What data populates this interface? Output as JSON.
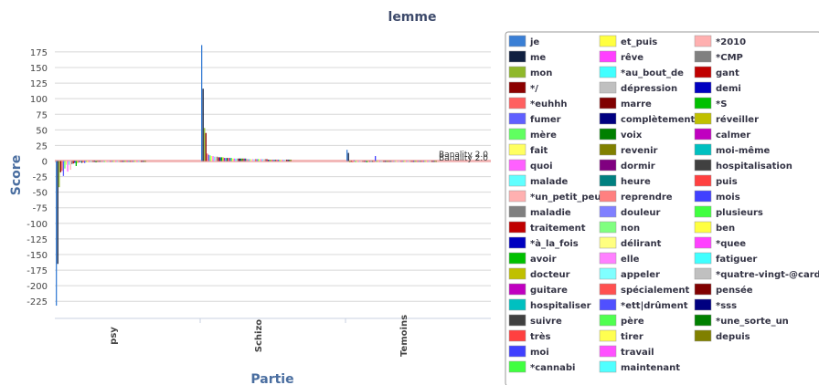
{
  "chart_data": {
    "type": "bar",
    "title": "lemme",
    "xlabel": "Partie",
    "ylabel": "Score",
    "ylim": [
      -235,
      190
    ],
    "yticks": [
      175,
      150,
      125,
      100,
      75,
      50,
      25,
      0,
      -25,
      -50,
      -75,
      -100,
      -125,
      -150,
      -175,
      -200,
      -225
    ],
    "grid": true,
    "legend_position": "right",
    "categories": [
      "psy",
      "Schizo",
      "Temoins"
    ],
    "annotations": [
      "Banality 2.0",
      "Banality 2.0"
    ],
    "series": [
      {
        "name": "je",
        "color": "#3a7fd5",
        "values": [
          -232,
          186,
          18
        ]
      },
      {
        "name": "me",
        "color": "#102040",
        "values": [
          -165,
          116,
          13
        ]
      },
      {
        "name": "mon",
        "color": "#8fb82a",
        "values": [
          -42,
          53,
          -2
        ]
      },
      {
        "name": "*/",
        "color": "#8b0000",
        "values": [
          -18,
          45,
          -1
        ]
      },
      {
        "name": "*euhhh",
        "color": "#ff6060",
        "values": [
          -16,
          12,
          -2
        ]
      },
      {
        "name": "fumer",
        "color": "#6060ff",
        "values": [
          -24,
          10,
          1
        ]
      },
      {
        "name": "mère",
        "color": "#60ff60",
        "values": [
          -12,
          9,
          -2
        ]
      },
      {
        "name": "fait",
        "color": "#ffff60",
        "values": [
          -6,
          8,
          -1
        ]
      },
      {
        "name": "quoi",
        "color": "#ff60ff",
        "values": [
          -17,
          8,
          -1
        ]
      },
      {
        "name": "malade",
        "color": "#60ffff",
        "values": [
          -6,
          7,
          -1
        ]
      },
      {
        "name": "*un_petit_peu",
        "color": "#ffb0b0",
        "values": [
          -14,
          7,
          0
        ]
      },
      {
        "name": "maladie",
        "color": "#808080",
        "values": [
          -5,
          7,
          -1
        ]
      },
      {
        "name": "traitement",
        "color": "#c00000",
        "values": [
          -4,
          6,
          -1
        ]
      },
      {
        "name": "*à_la_fois",
        "color": "#0000c0",
        "values": [
          -3,
          6,
          -1
        ]
      },
      {
        "name": "avoir",
        "color": "#00c000",
        "values": [
          -8,
          6,
          -2
        ]
      },
      {
        "name": "docteur",
        "color": "#c0c000",
        "values": [
          -3,
          6,
          -1
        ]
      },
      {
        "name": "guitare",
        "color": "#c000c0",
        "values": [
          -2,
          5,
          -1
        ]
      },
      {
        "name": "hospitaliser",
        "color": "#00c0c0",
        "values": [
          -2,
          5,
          -1
        ]
      },
      {
        "name": "suivre",
        "color": "#404040",
        "values": [
          -3,
          5,
          -1
        ]
      },
      {
        "name": "très",
        "color": "#ff4040",
        "values": [
          -2,
          5,
          -1
        ]
      },
      {
        "name": "moi",
        "color": "#4040ff",
        "values": [
          -3,
          5,
          8
        ]
      },
      {
        "name": "*cannabi",
        "color": "#40ff40",
        "values": [
          -1,
          5,
          -1
        ]
      },
      {
        "name": "et_puis",
        "color": "#ffff40",
        "values": [
          -2,
          4,
          -1
        ]
      },
      {
        "name": "rêve",
        "color": "#ff40ff",
        "values": [
          -1,
          4,
          -1
        ]
      },
      {
        "name": "*au_bout_de",
        "color": "#40ffff",
        "values": [
          -1,
          4,
          -1
        ]
      },
      {
        "name": "dépression",
        "color": "#c0c0c0",
        "values": [
          -2,
          4,
          -1
        ]
      },
      {
        "name": "marre",
        "color": "#800000",
        "values": [
          -1,
          4,
          -1
        ]
      },
      {
        "name": "complètement",
        "color": "#000080",
        "values": [
          -1,
          4,
          -1
        ]
      },
      {
        "name": "voix",
        "color": "#008000",
        "values": [
          -2,
          4,
          -1
        ]
      },
      {
        "name": "revenir",
        "color": "#808000",
        "values": [
          -1,
          4,
          -1
        ]
      },
      {
        "name": "dormir",
        "color": "#800080",
        "values": [
          -1,
          4,
          -1
        ]
      },
      {
        "name": "heure",
        "color": "#008080",
        "values": [
          -1,
          4,
          -1
        ]
      },
      {
        "name": "reprendre",
        "color": "#ff8080",
        "values": [
          -1,
          3,
          -1
        ]
      },
      {
        "name": "douleur",
        "color": "#8080ff",
        "values": [
          -1,
          3,
          -1
        ]
      },
      {
        "name": "non",
        "color": "#80ff80",
        "values": [
          -2,
          3,
          -1
        ]
      },
      {
        "name": "délirant",
        "color": "#ffff80",
        "values": [
          -1,
          3,
          -1
        ]
      },
      {
        "name": "elle",
        "color": "#ff80ff",
        "values": [
          -1,
          3,
          -1
        ]
      },
      {
        "name": "appeler",
        "color": "#80ffff",
        "values": [
          -1,
          3,
          -1
        ]
      },
      {
        "name": "spécialement",
        "color": "#ff5050",
        "values": [
          -1,
          3,
          -1
        ]
      },
      {
        "name": "*ett|drûment",
        "color": "#5050ff",
        "values": [
          -1,
          3,
          -1
        ]
      },
      {
        "name": "père",
        "color": "#50ff50",
        "values": [
          -1,
          3,
          -1
        ]
      },
      {
        "name": "tirer",
        "color": "#ffff50",
        "values": [
          -1,
          3,
          -1
        ]
      },
      {
        "name": "travail",
        "color": "#ff50ff",
        "values": [
          -1,
          3,
          -1
        ]
      },
      {
        "name": "maintenant",
        "color": "#50ffff",
        "values": [
          -1,
          3,
          -1
        ]
      },
      {
        "name": "*2010",
        "color": "#ffb0b0",
        "values": [
          -1,
          3,
          -1
        ]
      },
      {
        "name": "*CMP",
        "color": "#808080",
        "values": [
          -1,
          3,
          -1
        ]
      },
      {
        "name": "gant",
        "color": "#c00000",
        "values": [
          -1,
          3,
          -1
        ]
      },
      {
        "name": "demi",
        "color": "#0000c0",
        "values": [
          -1,
          2,
          -1
        ]
      },
      {
        "name": "*S",
        "color": "#00c000",
        "values": [
          -1,
          2,
          -1
        ]
      },
      {
        "name": "réveiller",
        "color": "#c0c000",
        "values": [
          -1,
          2,
          -1
        ]
      },
      {
        "name": "calmer",
        "color": "#c000c0",
        "values": [
          -1,
          2,
          -1
        ]
      },
      {
        "name": "moi-même",
        "color": "#00c0c0",
        "values": [
          -1,
          2,
          -1
        ]
      },
      {
        "name": "hospitalisation",
        "color": "#404040",
        "values": [
          -1,
          2,
          -1
        ]
      },
      {
        "name": "puis",
        "color": "#ff4040",
        "values": [
          -1,
          2,
          -1
        ]
      },
      {
        "name": "mois",
        "color": "#4040ff",
        "values": [
          -1,
          2,
          -1
        ]
      },
      {
        "name": "plusieurs",
        "color": "#40ff40",
        "values": [
          -1,
          2,
          -1
        ]
      },
      {
        "name": "ben",
        "color": "#ffff40",
        "values": [
          -1,
          2,
          -1
        ]
      },
      {
        "name": "*quee",
        "color": "#ff40ff",
        "values": [
          -1,
          2,
          -1
        ]
      },
      {
        "name": "fatiguer",
        "color": "#40ffff",
        "values": [
          -1,
          2,
          -1
        ]
      },
      {
        "name": "*quatre-vingt-@card@",
        "color": "#c0c0c0",
        "values": [
          -1,
          2,
          -1
        ]
      },
      {
        "name": "pensée",
        "color": "#800000",
        "values": [
          -1,
          2,
          -1
        ]
      },
      {
        "name": "*sss",
        "color": "#000080",
        "values": [
          -1,
          2,
          -1
        ]
      },
      {
        "name": "*une_sorte_un",
        "color": "#008000",
        "values": [
          -1,
          2,
          -1
        ]
      },
      {
        "name": "depuis",
        "color": "#808000",
        "values": [
          -1,
          2,
          -1
        ]
      }
    ]
  }
}
